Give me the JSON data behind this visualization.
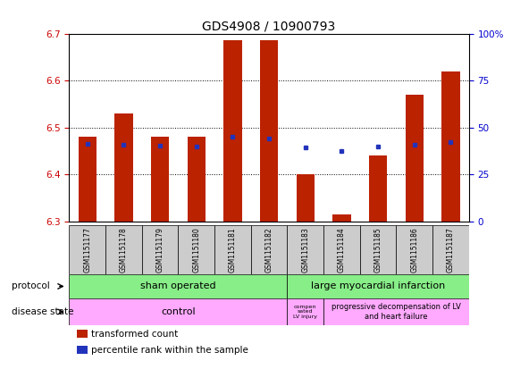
{
  "title": "GDS4908 / 10900793",
  "samples": [
    "GSM1151177",
    "GSM1151178",
    "GSM1151179",
    "GSM1151180",
    "GSM1151181",
    "GSM1151182",
    "GSM1151183",
    "GSM1151184",
    "GSM1151185",
    "GSM1151186",
    "GSM1151187"
  ],
  "bar_bottoms": [
    6.3,
    6.3,
    6.3,
    6.3,
    6.3,
    6.3,
    6.3,
    6.3,
    6.3,
    6.3,
    6.3
  ],
  "bar_tops": [
    6.48,
    6.53,
    6.48,
    6.48,
    6.685,
    6.685,
    6.4,
    6.315,
    6.44,
    6.57,
    6.62
  ],
  "blue_y": [
    6.465,
    6.463,
    6.462,
    6.46,
    6.48,
    6.476,
    6.457,
    6.449,
    6.46,
    6.463,
    6.469
  ],
  "ylim_left": [
    6.3,
    6.7
  ],
  "yticks_left": [
    6.3,
    6.4,
    6.5,
    6.6,
    6.7
  ],
  "ytick_right_labels": [
    "0",
    "25",
    "50",
    "75",
    "100%"
  ],
  "yticks_right_vals": [
    0,
    25,
    50,
    75,
    100
  ],
  "bar_color": "#bb2200",
  "blue_color": "#2233bb",
  "legend_items": [
    {
      "color": "#bb2200",
      "label": "transformed count"
    },
    {
      "color": "#2233bb",
      "label": "percentile rank within the sample"
    }
  ],
  "bar_width": 0.5,
  "left_ycolor": "#cc0000",
  "right_ycolor": "#0000cc",
  "sham_color": "#88ee88",
  "mi_color": "#88ee88",
  "disease_color": "#ffaaff",
  "sample_bg": "#cccccc"
}
